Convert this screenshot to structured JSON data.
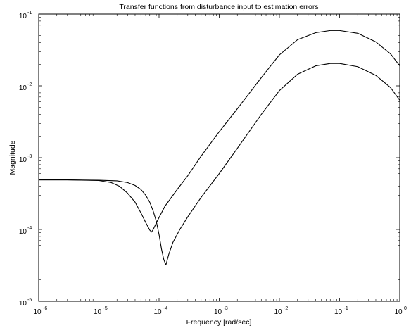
{
  "chart_data": {
    "type": "line",
    "title": "Transfer functions from disturbance input to estimation errors",
    "xlabel": "Frequency [rad/sec]",
    "ylabel": "Magnitude",
    "xscale": "log",
    "yscale": "log",
    "xlim": [
      1e-06,
      1
    ],
    "ylim": [
      1e-05,
      0.1
    ],
    "grid": false,
    "legend": "none",
    "x_ticks": [
      {
        "value": 1e-06,
        "label": "10",
        "exp": "-6"
      },
      {
        "value": 1e-05,
        "label": "10",
        "exp": "-5"
      },
      {
        "value": 0.0001,
        "label": "10",
        "exp": "-4"
      },
      {
        "value": 0.001,
        "label": "10",
        "exp": "-3"
      },
      {
        "value": 0.01,
        "label": "10",
        "exp": "-2"
      },
      {
        "value": 0.1,
        "label": "10",
        "exp": "-1"
      },
      {
        "value": 1,
        "label": "10",
        "exp": "0"
      }
    ],
    "y_ticks": [
      {
        "value": 1e-05,
        "label": "10",
        "exp": "-5"
      },
      {
        "value": 0.0001,
        "label": "10",
        "exp": "-4"
      },
      {
        "value": 0.001,
        "label": "10",
        "exp": "-3"
      },
      {
        "value": 0.01,
        "label": "10",
        "exp": "-2"
      },
      {
        "value": 0.1,
        "label": "10",
        "exp": "-1"
      }
    ],
    "line_color": "#000000",
    "series": [
      {
        "x": [
          1e-06,
          3e-06,
          1e-05,
          1.6e-05,
          2.2e-05,
          3e-05,
          4e-05,
          5e-05,
          6e-05,
          7e-05,
          7.5e-05,
          8e-05,
          9.5e-05,
          0.000125,
          0.0002,
          0.0003,
          0.0005,
          0.001,
          0.002,
          0.005,
          0.01,
          0.02,
          0.04,
          0.07,
          0.1,
          0.2,
          0.4,
          0.7,
          1
        ],
        "y": [
          0.00049,
          0.00049,
          0.00048,
          0.00045,
          0.0004,
          0.00032,
          0.00024,
          0.00017,
          0.000125,
          9.8e-05,
          9.2e-05,
          0.0001,
          0.000135,
          0.00021,
          0.00036,
          0.00056,
          0.00105,
          0.0023,
          0.0048,
          0.013,
          0.027,
          0.044,
          0.055,
          0.059,
          0.059,
          0.054,
          0.041,
          0.028,
          0.019
        ]
      },
      {
        "x": [
          1e-06,
          3e-06,
          1e-05,
          2e-05,
          3e-05,
          4e-05,
          5e-05,
          6e-05,
          7e-05,
          8e-05,
          9e-05,
          0.0001,
          0.00011,
          0.00012,
          0.00013,
          0.000145,
          0.00017,
          0.00022,
          0.0003,
          0.0005,
          0.001,
          0.002,
          0.005,
          0.01,
          0.02,
          0.04,
          0.07,
          0.1,
          0.2,
          0.4,
          0.7,
          1
        ],
        "y": [
          0.00049,
          0.00049,
          0.000485,
          0.000475,
          0.00045,
          0.00041,
          0.00036,
          0.0003,
          0.00024,
          0.00018,
          0.00013,
          8.5e-05,
          5.3e-05,
          3.8e-05,
          3.2e-05,
          4.5e-05,
          6.6e-05,
          9.9e-05,
          0.00015,
          0.00028,
          0.0006,
          0.00135,
          0.004,
          0.0086,
          0.0145,
          0.019,
          0.0205,
          0.0205,
          0.0185,
          0.014,
          0.0095,
          0.0063
        ]
      }
    ]
  }
}
